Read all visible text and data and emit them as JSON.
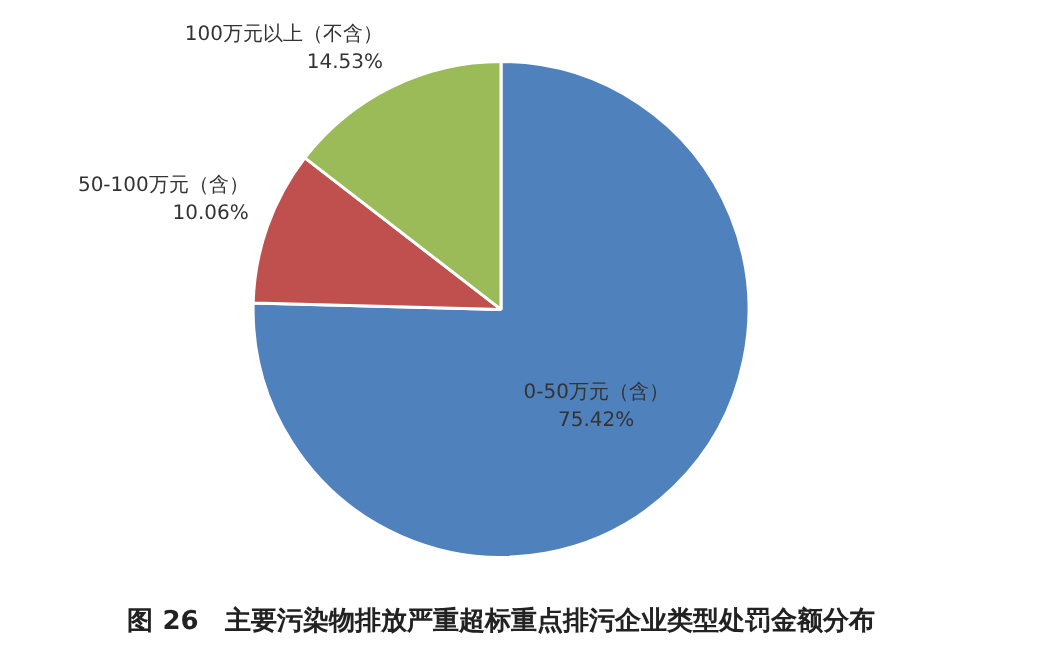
{
  "chart_data": {
    "type": "pie",
    "title": "图 26　主要污染物排放严重超标重点排污企业类型处罚金额分布",
    "categories": [
      "0-50万元（含）",
      "50-100万元（含）",
      "100万元以上（不含）"
    ],
    "values": [
      75.42,
      10.06,
      14.53
    ],
    "value_labels": [
      "75.42%",
      "10.06%",
      "14.53%"
    ],
    "colors": [
      "#4f81bd",
      "#c0504d",
      "#9bbb59"
    ],
    "legend": false
  }
}
